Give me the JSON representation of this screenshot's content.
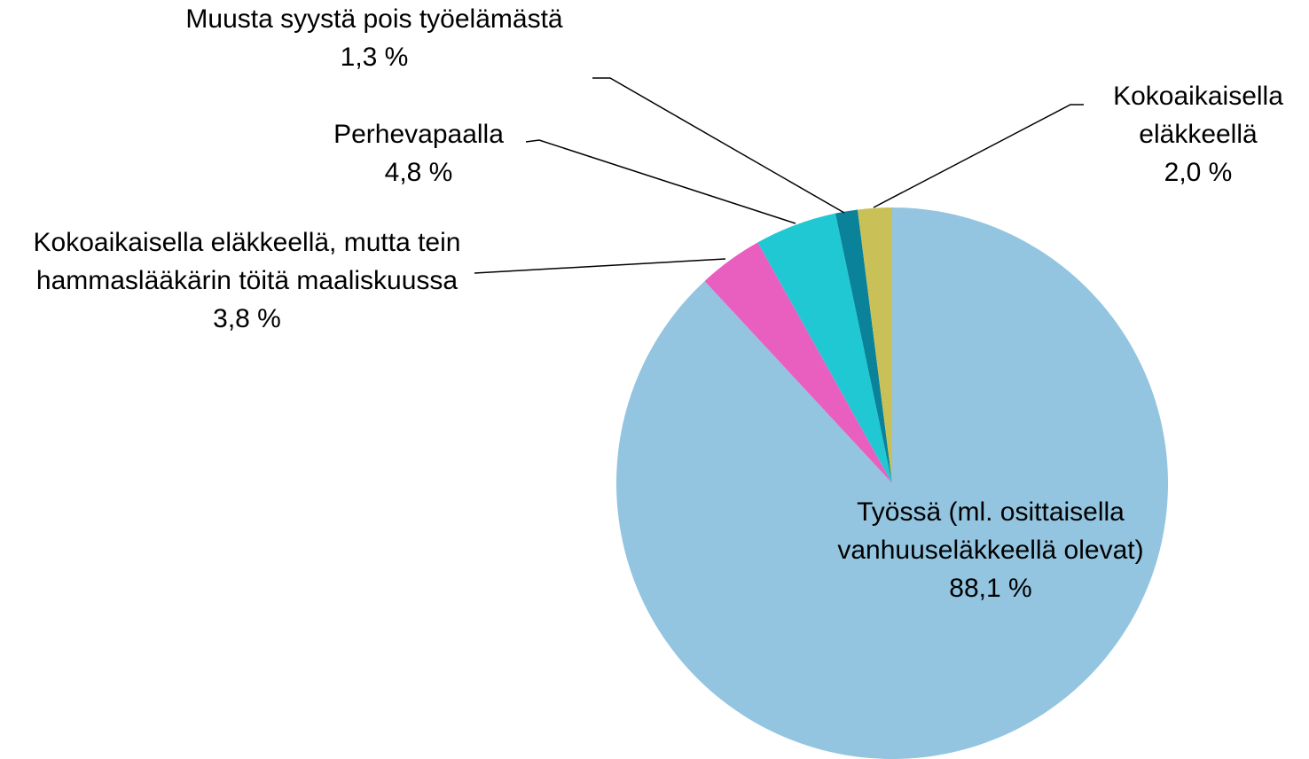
{
  "chart_data": {
    "type": "pie",
    "categories": [
      "Työssä (ml. osittaisella vanhuuseläkkeellä olevat)",
      "Kokoaikaisella eläkkeellä, mutta tein hammaslääkärin töitä maaliskuussa",
      "Perhevapaalla",
      "Muusta syystä pois työelämästä",
      "Kokoaikaisella eläkkeellä"
    ],
    "values": [
      88.1,
      3.8,
      4.8,
      1.3,
      2.0
    ],
    "value_labels": [
      "88,1 %",
      "3,8 %",
      "4,8 %",
      "1,3 %",
      "2,0 %"
    ],
    "colors": [
      "#93c5e0",
      "#e95fbf",
      "#1fc8d2",
      "#0a829a",
      "#c9c158"
    ]
  }
}
